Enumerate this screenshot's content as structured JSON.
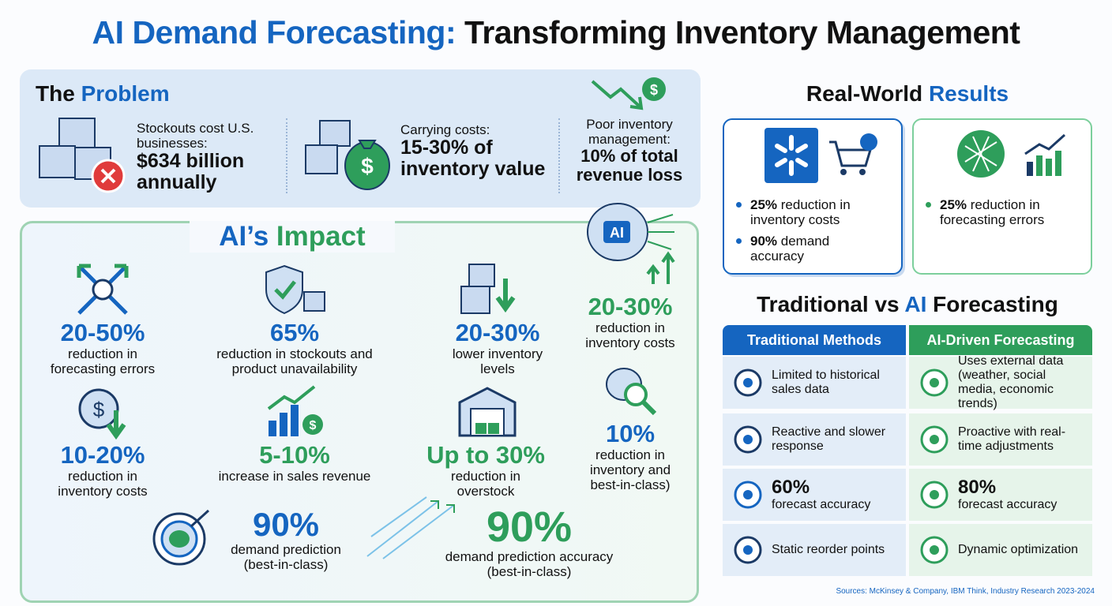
{
  "title": {
    "part1": "AI Demand Forecasting:",
    "part2": "Transforming Inventory Management"
  },
  "problem": {
    "heading": {
      "a": "The",
      "b": "Problem"
    },
    "items": [
      {
        "label": "Stockouts cost U.S. businesses:",
        "big": "$634 billion annually"
      },
      {
        "label": "Carrying costs:",
        "big": "15-30% of inventory value"
      },
      {
        "label": "Poor inventory management:",
        "big": "10% of total revenue loss"
      }
    ]
  },
  "impact": {
    "heading": {
      "a": "AI’s",
      "b": "Impact"
    },
    "stats": [
      {
        "value": "20-50%",
        "desc": "reduction in forecasting errors"
      },
      {
        "value": "65%",
        "desc": "reduction in stockouts and product unavailability"
      },
      {
        "value": "20-30%",
        "desc": "lower inventory levels"
      },
      {
        "value": "20-30%",
        "desc": "reduction in inventory costs"
      },
      {
        "value": "10-20%",
        "desc": "reduction in inventory costs"
      },
      {
        "value": "5-10%",
        "desc": "increase in sales revenue"
      },
      {
        "value": "Up to 30%",
        "desc": "reduction in overstock"
      },
      {
        "value": "10%",
        "desc": "reduction in inventory and best-in-class)"
      },
      {
        "value": "90%",
        "desc": "demand prediction (best-in-class)"
      },
      {
        "value": "90%",
        "desc": "demand prediction accuracy (best-in-class)"
      }
    ]
  },
  "results": {
    "heading": {
      "a": "Real-World",
      "b": "Results"
    },
    "cards": [
      {
        "bullets": [
          {
            "bold": "25%",
            "text": "reduction in inventory costs"
          },
          {
            "bold": "90%",
            "text": "demand accuracy"
          }
        ]
      },
      {
        "bullets": [
          {
            "bold": "25%",
            "text": "reduction in forecasting errors"
          }
        ]
      }
    ]
  },
  "comparison": {
    "heading": {
      "a": "Traditional vs",
      "b": "AI",
      "c": "Forecasting"
    },
    "columns": [
      "Traditional Methods",
      "AI-Driven Forecasting"
    ],
    "rows": [
      [
        {
          "text": "Limited to historical sales data"
        },
        {
          "text": "Uses external data (weather, social media, economic trends)"
        }
      ],
      [
        {
          "text": "Reactive and slower response"
        },
        {
          "text": "Proactive with real-time adjustments"
        }
      ],
      [
        {
          "big": "60%",
          "text": "forecast accuracy"
        },
        {
          "big": "80%",
          "text": "forecast accuracy"
        }
      ],
      [
        {
          "text": "Static reorder points"
        },
        {
          "text": "Dynamic optimization"
        }
      ]
    ]
  },
  "sources": "Sources: McKinsey & Company, IBM Think, Industry Research 2023-2024"
}
